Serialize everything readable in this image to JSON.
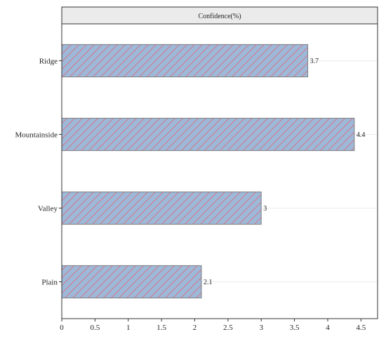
{
  "chart_data": {
    "type": "bar",
    "orientation": "horizontal",
    "facet_label": "Confidence(%)",
    "categories": [
      "Ridge",
      "Mountainside",
      "Valley",
      "Plain"
    ],
    "values": [
      3.7,
      4.4,
      3.0,
      2.1
    ],
    "value_labels": [
      "3.7",
      "4.4",
      "3",
      "2.1"
    ],
    "x_ticks": [
      0,
      0.5,
      1,
      1.5,
      2,
      2.5,
      3,
      3.5,
      4,
      4.5
    ],
    "x_tick_labels": [
      "0",
      "0.5",
      "1",
      "1.5",
      "2",
      "2.5",
      "3",
      "3.5",
      "4",
      "4.5"
    ],
    "xlim": [
      0,
      4.75
    ],
    "xlabel": "",
    "ylabel": "",
    "title": "",
    "grid": true,
    "legend": "none",
    "colors": {
      "bar_fill": "#9db8d9",
      "bar_hatch": "#d9707a",
      "bar_border": "#808080",
      "strip_fill": "#ebebeb",
      "grid": "#ececec"
    }
  }
}
